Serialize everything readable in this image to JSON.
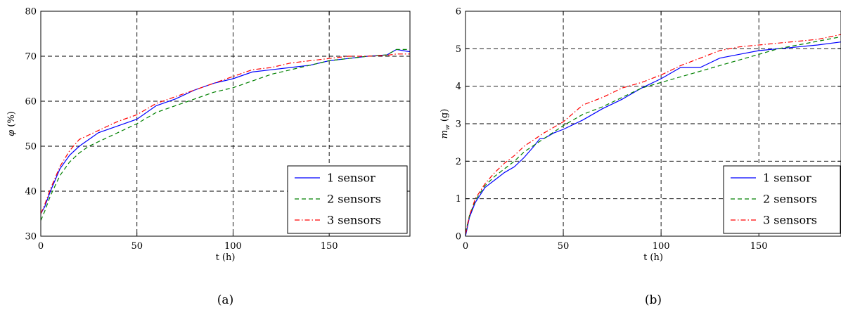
{
  "colors": {
    "series1": "#0000ff",
    "series2": "#008000",
    "series3": "#ff0000"
  },
  "chart_data": [
    {
      "type": "line",
      "caption": "(a)",
      "xlabel": "t (h)",
      "ylabel": "φ (%)",
      "xlim": [
        0,
        192
      ],
      "ylim": [
        30,
        80
      ],
      "xticks": [
        0,
        50,
        100,
        150
      ],
      "yticks": [
        30,
        40,
        50,
        60,
        70,
        80
      ],
      "grid": true,
      "legend": "bottom-right",
      "series": [
        {
          "name": "1 sensor",
          "style": "solid",
          "x": [
            0,
            2,
            5,
            10,
            15,
            20,
            25,
            30,
            40,
            50,
            60,
            70,
            80,
            90,
            100,
            110,
            120,
            130,
            140,
            150,
            160,
            170,
            180,
            185,
            192
          ],
          "y": [
            35,
            36.5,
            40,
            45,
            48,
            50,
            51.5,
            53,
            54.5,
            56,
            59,
            60.5,
            62.5,
            64,
            65,
            66.5,
            67,
            67.5,
            68,
            69,
            69.5,
            70,
            70.3,
            71.5,
            71
          ]
        },
        {
          "name": "2 sensors",
          "style": "dashed",
          "x": [
            0,
            2,
            5,
            10,
            15,
            20,
            25,
            30,
            40,
            50,
            60,
            70,
            80,
            90,
            100,
            110,
            120,
            130,
            140,
            150,
            160,
            170,
            180,
            185,
            192
          ],
          "y": [
            33.5,
            35.5,
            39,
            43.5,
            46.5,
            48.5,
            50,
            51,
            53,
            55,
            57.5,
            59,
            60.5,
            62,
            63,
            64.5,
            66,
            67,
            68,
            69,
            69.5,
            70,
            70.3,
            71.5,
            71.5
          ]
        },
        {
          "name": "3 sensors",
          "style": "dashdot",
          "x": [
            0,
            2,
            5,
            10,
            15,
            20,
            25,
            30,
            40,
            50,
            60,
            70,
            80,
            90,
            100,
            110,
            120,
            130,
            140,
            150,
            160,
            170,
            180,
            185,
            192
          ],
          "y": [
            35,
            37,
            40.5,
            45.5,
            49,
            51.5,
            52.5,
            53.5,
            55.5,
            57,
            59.5,
            61,
            62.5,
            64,
            65.5,
            67,
            67.5,
            68.5,
            69,
            69.5,
            70,
            70,
            70.2,
            70.5,
            70.5
          ]
        }
      ]
    },
    {
      "type": "line",
      "caption": "(b)",
      "xlabel": "t (h)",
      "ylabel": "m_w (g)",
      "xlim": [
        0,
        192
      ],
      "ylim": [
        0,
        6
      ],
      "xticks": [
        0,
        50,
        100,
        150
      ],
      "yticks": [
        0,
        1,
        2,
        3,
        4,
        5,
        6
      ],
      "grid": true,
      "legend": "bottom-right",
      "series": [
        {
          "name": "1 sensor",
          "style": "solid",
          "x": [
            0,
            2,
            5,
            10,
            15,
            20,
            25,
            30,
            35,
            38,
            40,
            45,
            50,
            60,
            70,
            80,
            90,
            100,
            105,
            110,
            115,
            120,
            130,
            140,
            150,
            160,
            170,
            180,
            192
          ],
          "y": [
            0,
            0.5,
            0.9,
            1.3,
            1.5,
            1.7,
            1.85,
            2.1,
            2.4,
            2.6,
            2.6,
            2.75,
            2.85,
            3.1,
            3.4,
            3.65,
            3.95,
            4.2,
            4.35,
            4.5,
            4.5,
            4.5,
            4.75,
            4.85,
            4.95,
            5.0,
            5.05,
            5.1,
            5.18
          ]
        },
        {
          "name": "2 sensors",
          "style": "dashed",
          "x": [
            0,
            2,
            5,
            10,
            15,
            20,
            25,
            30,
            40,
            50,
            60,
            70,
            80,
            90,
            100,
            110,
            120,
            130,
            140,
            150,
            160,
            170,
            180,
            192
          ],
          "y": [
            0.1,
            0.55,
            0.95,
            1.35,
            1.6,
            1.8,
            2.0,
            2.25,
            2.6,
            2.95,
            3.25,
            3.45,
            3.7,
            3.95,
            4.1,
            4.25,
            4.4,
            4.55,
            4.7,
            4.85,
            5.0,
            5.1,
            5.2,
            5.32
          ]
        },
        {
          "name": "3 sensors",
          "style": "dashdot",
          "x": [
            0,
            2,
            5,
            10,
            15,
            20,
            25,
            30,
            40,
            50,
            60,
            70,
            80,
            90,
            100,
            110,
            120,
            130,
            140,
            150,
            160,
            170,
            180,
            192
          ],
          "y": [
            0.05,
            0.55,
            1.0,
            1.4,
            1.7,
            1.95,
            2.15,
            2.4,
            2.75,
            3.05,
            3.5,
            3.7,
            3.95,
            4.1,
            4.3,
            4.55,
            4.75,
            4.95,
            5.05,
            5.1,
            5.15,
            5.2,
            5.25,
            5.38
          ]
        }
      ]
    }
  ]
}
